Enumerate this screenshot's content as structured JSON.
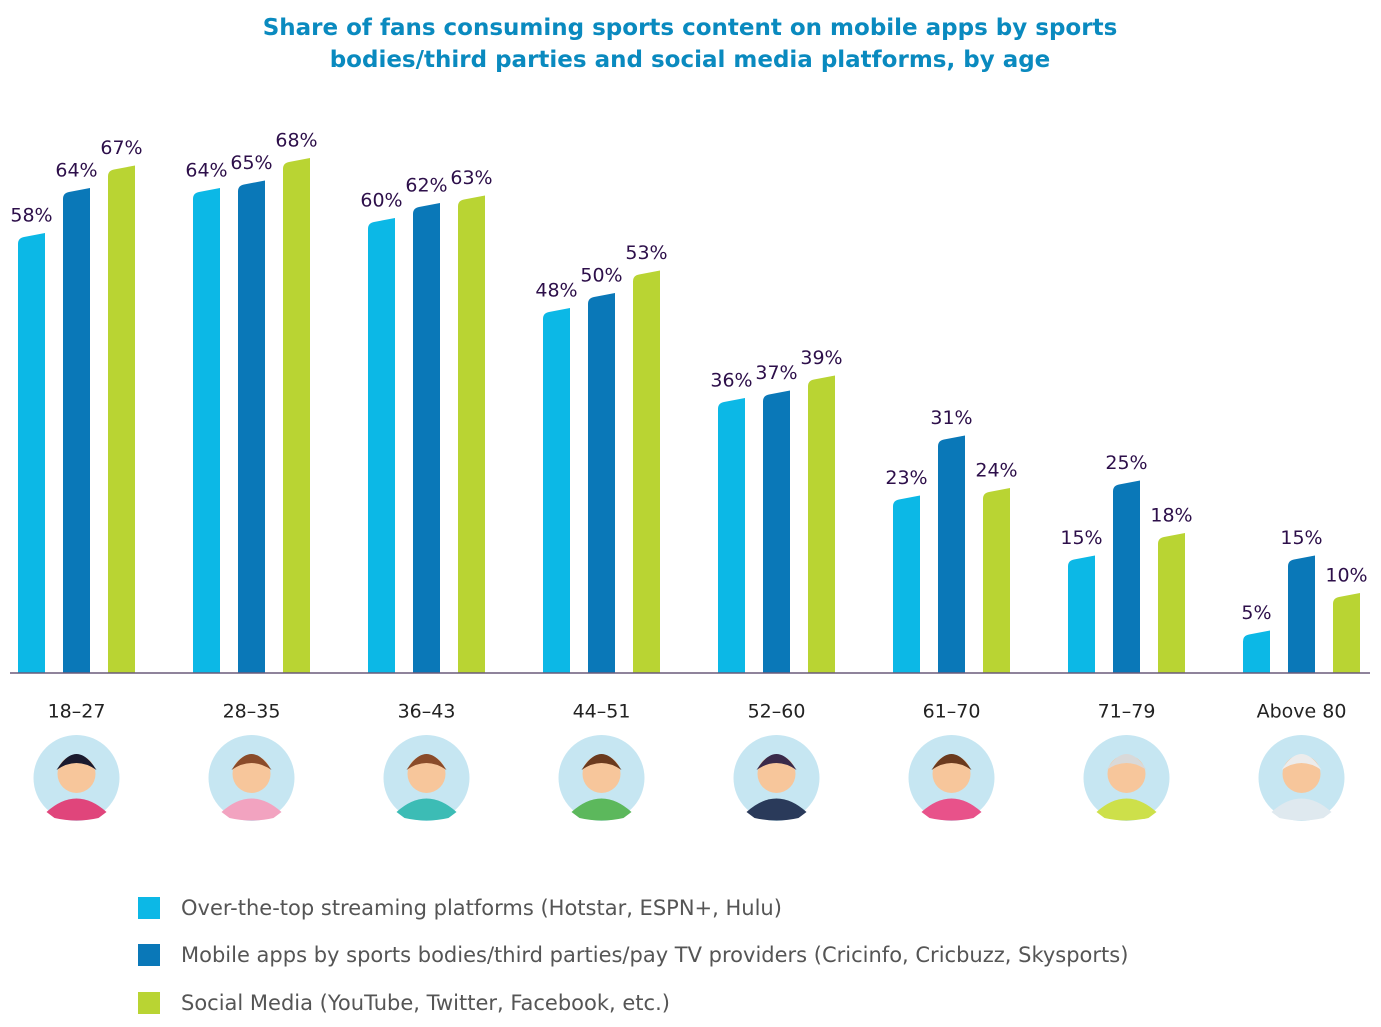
{
  "chart_data": {
    "type": "bar",
    "title": "Share of fans consuming sports content on mobile apps by sports bodies/third parties and social media platforms, by age",
    "categories": [
      "18–27",
      "28–35",
      "36–43",
      "44–51",
      "52–60",
      "61–70",
      "71–79",
      "Above 80"
    ],
    "series": [
      {
        "name": "Over-the-top streaming platforms (Hotstar, ESPN+, Hulu)",
        "color": "#0cb8e6",
        "values": [
          58,
          64,
          60,
          48,
          36,
          23,
          15,
          5
        ],
        "value_labels": [
          "58%",
          "64%",
          "60%",
          "48%",
          "36%",
          "23%",
          "15%",
          "5%"
        ]
      },
      {
        "name": "Mobile apps by sports bodies/third parties/pay TV providers (Cricinfo, Cricbuzz, Skysports)",
        "color": "#0a78b8",
        "values": [
          64,
          65,
          62,
          50,
          37,
          31,
          25,
          15
        ],
        "value_labels": [
          "64%",
          "65%",
          "62%",
          "50%",
          "37%",
          "31%",
          "25%",
          "15%"
        ]
      },
      {
        "name": "Social Media (YouTube, Twitter, Facebook, etc.)",
        "color": "#b9d433",
        "values": [
          67,
          68,
          63,
          53,
          39,
          24,
          18,
          10
        ],
        "value_labels": [
          "67%",
          "68%",
          "63%",
          "53%",
          "39%",
          "24%",
          "18%",
          "10%"
        ]
      }
    ]
  }
}
